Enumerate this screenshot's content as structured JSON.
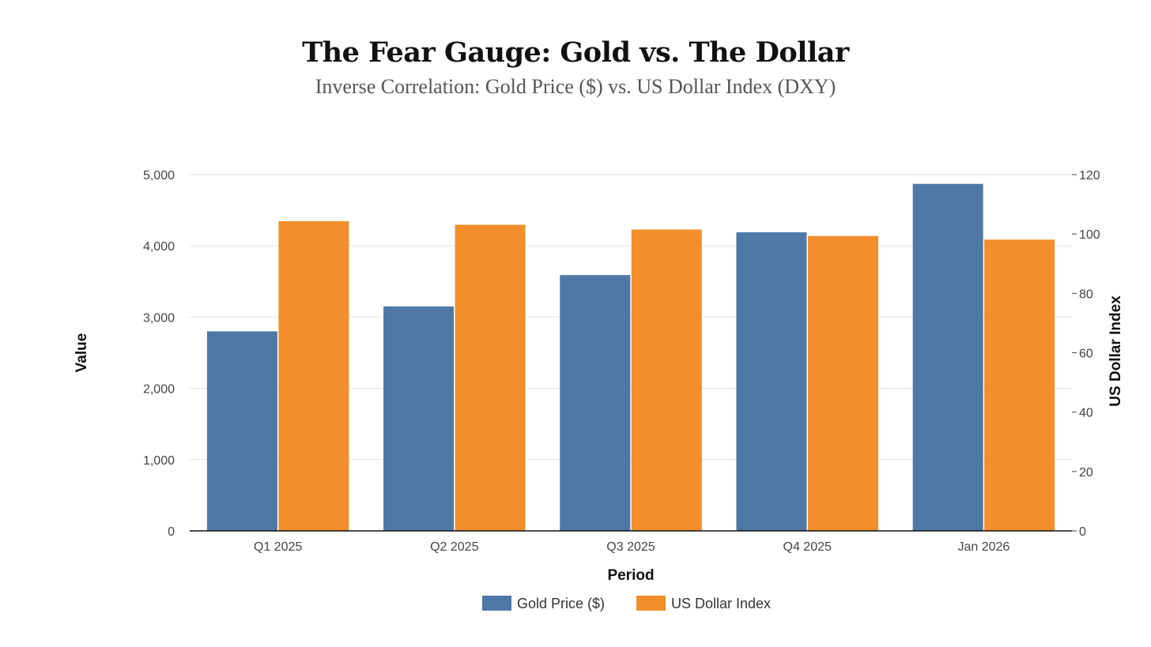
{
  "chart_data": {
    "type": "bar",
    "title": "The Fear Gauge: Gold vs. The Dollar",
    "subtitle": "Inverse Correlation: Gold Price ($) vs. US Dollar Index (DXY)",
    "categories": [
      "Q1 2025",
      "Q2 2025",
      "Q3 2025",
      "Q4 2025",
      "Jan 2026"
    ],
    "series": [
      {
        "name": "Gold Price ($)",
        "axis": "left",
        "color": "#4e79a7",
        "values": [
          2800,
          3150,
          3590,
          4190,
          4870
        ]
      },
      {
        "name": "US Dollar Index",
        "axis": "right",
        "color": "#f28e2b",
        "values": [
          104.3,
          103.1,
          101.5,
          99.3,
          98.1
        ]
      }
    ],
    "xlabel": "Period",
    "ylabel": "Value",
    "y2label": "US Dollar Index",
    "ylim": [
      0,
      5000
    ],
    "y2lim": [
      0,
      120
    ],
    "yticks": [
      "0",
      "1,000",
      "2,000",
      "3,000",
      "4,000",
      "5,000"
    ],
    "y2ticks": [
      "0",
      "20",
      "40",
      "60",
      "80",
      "100",
      "120"
    ],
    "grid": true,
    "legend": "bottom-center"
  }
}
